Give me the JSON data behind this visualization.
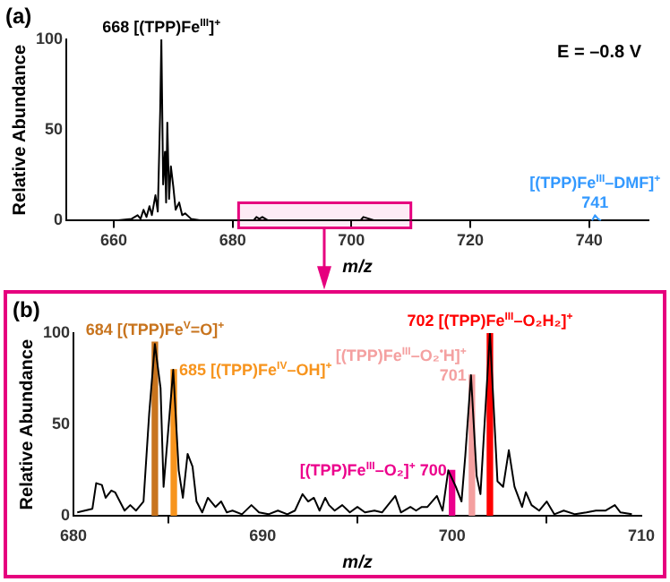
{
  "chart_data": [
    {
      "type": "line",
      "title": "(a)",
      "xlabel": "m/z",
      "ylabel": "Relative Abundance",
      "xlim": [
        652,
        750
      ],
      "xticks": [
        660,
        680,
        700,
        720,
        740
      ],
      "ylim": [
        0,
        100
      ],
      "yticks": [
        0,
        50,
        100
      ],
      "grid": false,
      "legend": false,
      "marker": "none",
      "annotations": [
        "E = –0.8 V",
        {
          "text": "668 [(TPP)Fe$^{III}$]$^{+}$",
          "x": 668,
          "y": 100
        },
        {
          "text": "[(TPP)Fe$^{III}$–DMF]$^{+}$",
          "x": 741,
          "y": 3
        },
        {
          "text": "741",
          "x": 741,
          "y": 3
        }
      ],
      "bands": [
        {
          "axis": "x",
          "from": 681,
          "to": 710,
          "color": "#e6007e"
        }
      ],
      "series": [
        {
          "color": "#000000",
          "x": [
            652,
            660,
            663,
            664,
            664.5,
            665,
            665.5,
            666,
            666.4,
            667,
            667.4,
            667.8,
            668,
            668.3,
            668.6,
            668.8,
            669,
            669.3,
            669.6,
            670,
            670.4,
            671,
            671.5,
            672,
            673,
            675,
            683.5,
            684,
            684.5,
            685,
            686,
            701.5,
            702,
            703,
            704,
            740
          ],
          "values": [
            0,
            0,
            1,
            3,
            1,
            6,
            2,
            8,
            3,
            14,
            5,
            60,
            100,
            20,
            38,
            10,
            54,
            12,
            30,
            19,
            6,
            10,
            3,
            4,
            1,
            0,
            0,
            2,
            1,
            2,
            0,
            0,
            2,
            1,
            0,
            0
          ]
        },
        {
          "color": "#3399ff",
          "x": [
            740.5,
            741,
            741.5,
            742
          ],
          "values": [
            0,
            3,
            1,
            0
          ]
        }
      ]
    },
    {
      "type": "line",
      "title": "(b)",
      "xlabel": "m/z",
      "ylabel": "Relative Abundance",
      "xlim": [
        680,
        710
      ],
      "xticks": [
        680,
        690,
        700,
        710
      ],
      "ylim": [
        0,
        100
      ],
      "yticks": [
        0,
        50,
        100
      ],
      "grid": false,
      "legend": false,
      "marker": "none",
      "annotations": [
        {
          "text": "684 [(TPP)Fe$^{V}$=O]$^{+}$",
          "x": 684.3,
          "y": 95
        },
        {
          "text": "685 [(TPP)Fe$^{IV}$–OH]$^{+}$",
          "x": 685.3,
          "y": 80
        },
        {
          "text": "[(TPP)Fe$^{III}$–O₂]$^{+}$ 700",
          "x": 700,
          "y": 25
        },
        {
          "text": "[(TPP)Fe$^{III}$–O₂$^{•}$H]$^{+}$",
          "x": 701.05,
          "y": 77
        },
        {
          "text": "701",
          "x": 701.05,
          "y": 77
        },
        {
          "text": "702 [(TPP)Fe$^{III}$–O₂H₂]$^{+}$",
          "x": 702,
          "y": 100
        }
      ],
      "series": [
        {
          "color": "#000000",
          "x": [
            680.2,
            681,
            681.2,
            681.5,
            681.7,
            682,
            682.2,
            682.4,
            682.7,
            683,
            683.3,
            683.7,
            684,
            684.3,
            684.6,
            684.76,
            685.27,
            685.56,
            685.78,
            686.03,
            686.29,
            686.5,
            686.8,
            687.1,
            687.5,
            687.8,
            688.1,
            688.4,
            688.9,
            689.4,
            689.8,
            690.3,
            690.8,
            691.3,
            691.7,
            692.1,
            692.4,
            692.7,
            693,
            693.3,
            693.5,
            693.8,
            694.2,
            694.6,
            695,
            695.4,
            695.9,
            696.3,
            697,
            697.3,
            697.8,
            698.1,
            698.4,
            698.7,
            699.2,
            699.5,
            699.8,
            700.2,
            700.5,
            700.7,
            701,
            701.3,
            701.5,
            702,
            702.4,
            702.7,
            703,
            703.3,
            703.7,
            703.9,
            704.2,
            704.6,
            705,
            705.4,
            705.9,
            706.5,
            707.1,
            707.6,
            708.1,
            708.6,
            708.9,
            709.5
          ],
          "values": [
            2,
            4,
            18,
            17,
            10,
            14,
            13,
            9,
            3,
            6,
            3,
            8,
            56,
            94,
            70,
            16,
            80,
            25,
            10,
            34,
            27,
            8,
            2,
            10,
            5,
            8,
            2,
            3,
            1,
            6,
            2,
            1,
            3,
            1,
            3,
            12,
            8,
            10,
            3,
            10,
            6,
            3,
            6,
            2,
            5,
            2,
            3,
            2,
            11,
            2,
            5,
            3,
            5,
            5,
            11,
            3,
            25,
            16,
            8,
            33,
            77,
            22,
            12,
            100,
            19,
            16,
            36,
            16,
            5,
            13,
            6,
            3,
            8,
            1,
            3,
            1,
            2,
            3,
            3,
            6,
            2,
            1
          ]
        },
        {
          "type": "bar",
          "x": [
            684.3,
            685.3,
            700,
            701.05,
            702
          ],
          "values": [
            95,
            80,
            25,
            77,
            100
          ],
          "colors": [
            "#c8741e",
            "#f7941d",
            "#ec008c",
            "#f4a0a0",
            "#ff0000"
          ]
        }
      ]
    }
  ]
}
